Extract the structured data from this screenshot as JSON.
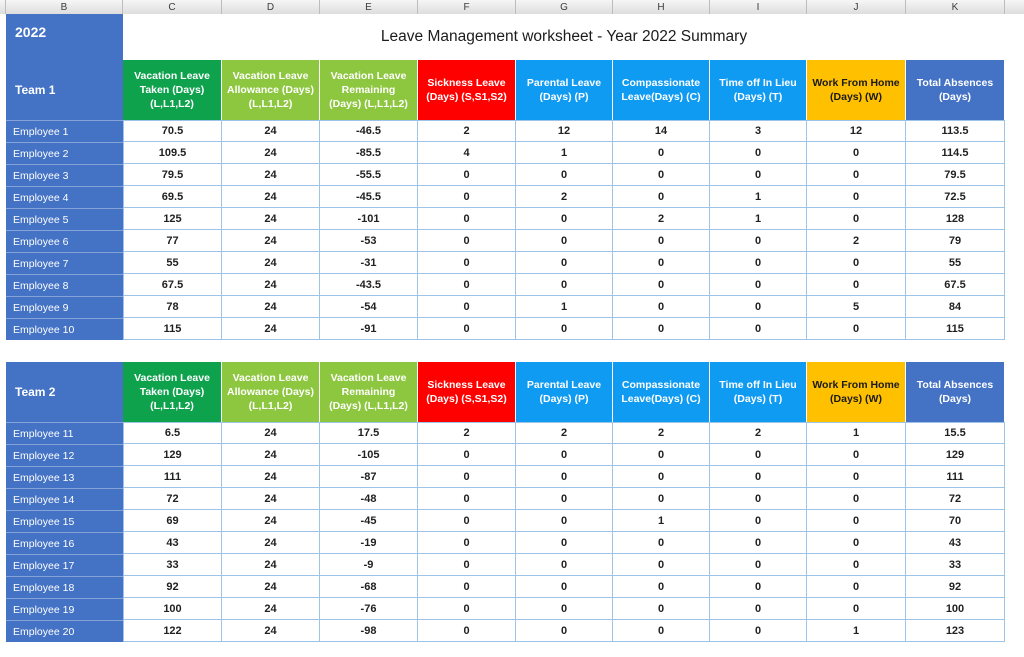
{
  "title": "Leave Management worksheet - Year 2022 Summary",
  "year": "2022",
  "column_letters": [
    "B",
    "C",
    "D",
    "E",
    "F",
    "G",
    "H",
    "I",
    "J",
    "K"
  ],
  "columns": [
    {
      "label": "Vacation Leave Taken (Days) (L,L1,L2)",
      "color": "green"
    },
    {
      "label": "Vacation Leave Allowance (Days) (L,L1,L2)",
      "color": "light_green"
    },
    {
      "label": "Vacation Leave Remaining (Days) (L,L1,L2)",
      "color": "light_green"
    },
    {
      "label": "Sickness Leave (Days) (S,S1,S2)",
      "color": "red"
    },
    {
      "label": "Parental Leave (Days) (P)",
      "color": "azure"
    },
    {
      "label": "Compassionate Leave(Days) (C)",
      "color": "azure"
    },
    {
      "label": "Time off In Lieu (Days) (T)",
      "color": "azure"
    },
    {
      "label": "Work From Home (Days) (W)",
      "color": "orange"
    },
    {
      "label": "Total Absences (Days)",
      "color": "blue"
    }
  ],
  "teams": [
    {
      "name": "Team 1",
      "employees": [
        {
          "label": "Employee 1",
          "values": [
            70.5,
            24,
            -46.5,
            2,
            12,
            14,
            3,
            12,
            113.5
          ]
        },
        {
          "label": "Employee 2",
          "values": [
            109.5,
            24,
            -85.5,
            4,
            1,
            0,
            0,
            0,
            114.5
          ]
        },
        {
          "label": "Employee 3",
          "values": [
            79.5,
            24,
            -55.5,
            0,
            0,
            0,
            0,
            0,
            79.5
          ]
        },
        {
          "label": "Employee 4",
          "values": [
            69.5,
            24,
            -45.5,
            0,
            2,
            0,
            1,
            0,
            72.5
          ]
        },
        {
          "label": "Employee 5",
          "values": [
            125,
            24,
            -101,
            0,
            0,
            2,
            1,
            0,
            128
          ]
        },
        {
          "label": "Employee 6",
          "values": [
            77,
            24,
            -53,
            0,
            0,
            0,
            0,
            2,
            79
          ]
        },
        {
          "label": "Employee 7",
          "values": [
            55,
            24,
            -31,
            0,
            0,
            0,
            0,
            0,
            55
          ]
        },
        {
          "label": "Employee 8",
          "values": [
            67.5,
            24,
            -43.5,
            0,
            0,
            0,
            0,
            0,
            67.5
          ]
        },
        {
          "label": "Employee 9",
          "values": [
            78,
            24,
            -54,
            0,
            1,
            0,
            0,
            5,
            84
          ]
        },
        {
          "label": "Employee 10",
          "values": [
            115,
            24,
            -91,
            0,
            0,
            0,
            0,
            0,
            115
          ]
        }
      ]
    },
    {
      "name": "Team 2",
      "employees": [
        {
          "label": "Employee 11",
          "values": [
            6.5,
            24,
            17.5,
            2,
            2,
            2,
            2,
            1,
            15.5
          ]
        },
        {
          "label": "Employee 12",
          "values": [
            129,
            24,
            -105,
            0,
            0,
            0,
            0,
            0,
            129
          ]
        },
        {
          "label": "Employee 13",
          "values": [
            111,
            24,
            -87,
            0,
            0,
            0,
            0,
            0,
            111
          ]
        },
        {
          "label": "Employee 14",
          "values": [
            72,
            24,
            -48,
            0,
            0,
            0,
            0,
            0,
            72
          ]
        },
        {
          "label": "Employee 15",
          "values": [
            69,
            24,
            -45,
            0,
            0,
            1,
            0,
            0,
            70
          ]
        },
        {
          "label": "Employee 16",
          "values": [
            43,
            24,
            -19,
            0,
            0,
            0,
            0,
            0,
            43
          ]
        },
        {
          "label": "Employee 17",
          "values": [
            33,
            24,
            -9,
            0,
            0,
            0,
            0,
            0,
            33
          ]
        },
        {
          "label": "Employee 18",
          "values": [
            92,
            24,
            -68,
            0,
            0,
            0,
            0,
            0,
            92
          ]
        },
        {
          "label": "Employee 19",
          "values": [
            100,
            24,
            -76,
            0,
            0,
            0,
            0,
            0,
            100
          ]
        },
        {
          "label": "Employee 20",
          "values": [
            122,
            24,
            -98,
            0,
            0,
            0,
            0,
            1,
            123
          ]
        }
      ]
    }
  ],
  "colors": {
    "row_header_blue": "#4472C4",
    "green": "#0EA24D",
    "light_green": "#8DC63F",
    "red": "#FF0000",
    "azure": "#109BF2",
    "orange": "#FFC000",
    "total_blue": "#4472C4",
    "gridline": "#9DC3E6"
  }
}
